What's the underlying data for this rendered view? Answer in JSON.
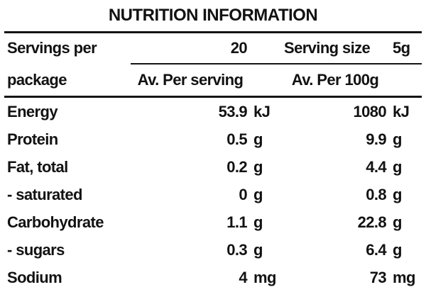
{
  "title": "NUTRITION INFORMATION",
  "header": {
    "servings_label_line1": "Servings per",
    "servings_label_line2": "package",
    "servings_value": "20",
    "serving_size_label": "Serving size",
    "serving_size_value": "5g",
    "col_per_serving": "Av. Per serving",
    "col_per_100g": "Av. Per 100g"
  },
  "rows": [
    {
      "label": "Energy",
      "per_serving": "53.9",
      "per_serving_unit": "kJ",
      "per_100g": "1080",
      "per_100g_unit": "kJ"
    },
    {
      "label": "Protein",
      "per_serving": "0.5",
      "per_serving_unit": "g",
      "per_100g": "9.9",
      "per_100g_unit": "g"
    },
    {
      "label": "Fat, total",
      "per_serving": "0.2",
      "per_serving_unit": "g",
      "per_100g": "4.4",
      "per_100g_unit": "g"
    },
    {
      "label": "- saturated",
      "per_serving": "0",
      "per_serving_unit": "g",
      "per_100g": "0.8",
      "per_100g_unit": "g"
    },
    {
      "label": "Carbohydrate",
      "per_serving": "1.1",
      "per_serving_unit": "g",
      "per_100g": "22.8",
      "per_100g_unit": "g"
    },
    {
      "label": "- sugars",
      "per_serving": "0.3",
      "per_serving_unit": "g",
      "per_100g": "6.4",
      "per_100g_unit": "g"
    },
    {
      "label": "Sodium",
      "per_serving": "4",
      "per_serving_unit": "mg",
      "per_100g": "73",
      "per_100g_unit": "mg"
    }
  ],
  "colors": {
    "text": "#121212",
    "background": "#ffffff",
    "rule": "#141414"
  }
}
